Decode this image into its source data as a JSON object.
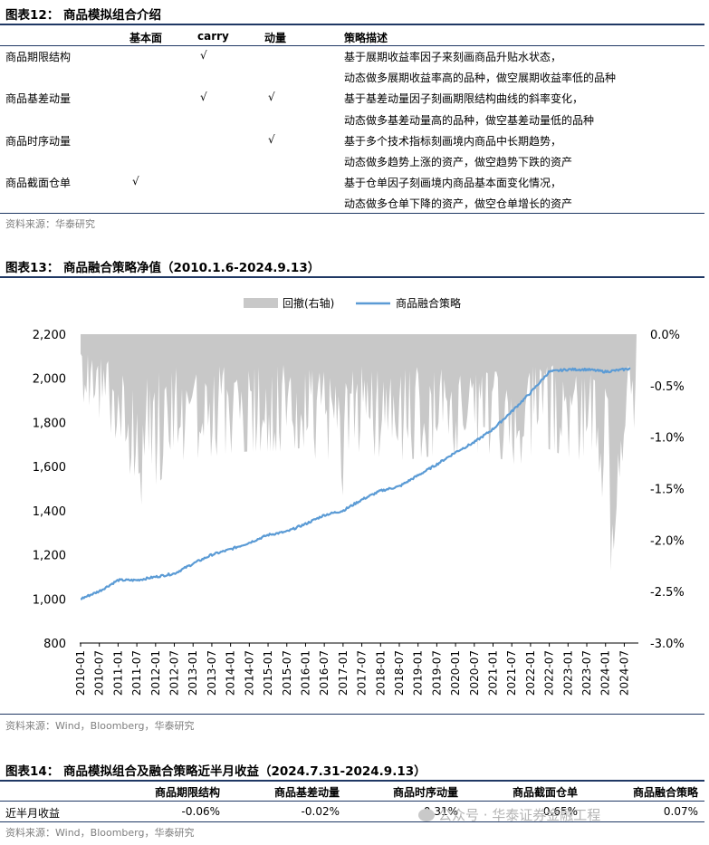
{
  "fig12": {
    "title": "图表12：  商品模拟组合介绍",
    "headers": [
      "基本面",
      "carry",
      "动量",
      "策略描述"
    ],
    "rows": [
      {
        "name": "商品期限结构",
        "fund": "",
        "carry": "√",
        "mom": "",
        "desc": [
          "基于展期收益率因子来刻画商品升贴水状态，",
          "动态做多展期收益率高的品种，做空展期收益率低的品种"
        ]
      },
      {
        "name": "商品基差动量",
        "fund": "",
        "carry": "√",
        "mom": "√",
        "desc": [
          "基于基差动量因子刻画期限结构曲线的斜率变化，",
          "动态做多基差动量高的品种，做空基差动量低的品种"
        ]
      },
      {
        "name": "商品时序动量",
        "fund": "",
        "carry": "",
        "mom": "√",
        "desc": [
          "基于多个技术指标刻画境内商品中长期趋势，",
          "动态做多趋势上涨的资产，做空趋势下跌的资产"
        ]
      },
      {
        "name": "商品截面仓单",
        "fund": "√",
        "carry": "",
        "mom": "",
        "desc": [
          "基于仓单因子刻画境内商品基本面变化情况，",
          "动态做多仓单下降的资产，做空仓单增长的资产"
        ]
      }
    ],
    "source": "资料来源：华泰研究"
  },
  "fig13": {
    "title": "图表13：  商品融合策略净值（2010.1.6-2024.9.13）",
    "source": "资料来源：Wind，Bloomberg，华泰研究"
  },
  "chart_data": {
    "type": "line",
    "legend": [
      "回撤(右轴)",
      "商品融合策略"
    ],
    "legend_position": "top",
    "colors": {
      "line": "#5b9bd5",
      "drawdown": "#c8c8c8"
    },
    "x_tick_labels": [
      "2010-01",
      "2010-07",
      "2011-01",
      "2011-07",
      "2012-01",
      "2012-07",
      "2013-01",
      "2013-07",
      "2014-01",
      "2014-07",
      "2015-01",
      "2015-07",
      "2016-01",
      "2016-07",
      "2017-01",
      "2017-07",
      "2018-01",
      "2018-07",
      "2019-01",
      "2019-07",
      "2020-01",
      "2020-07",
      "2021-01",
      "2021-07",
      "2022-01",
      "2022-07",
      "2023-01",
      "2023-07",
      "2024-01",
      "2024-07"
    ],
    "y_left": {
      "min": 800,
      "max": 2200,
      "ticks": [
        "800",
        "1,000",
        "1,200",
        "1,400",
        "1,600",
        "1,800",
        "2,000",
        "2,200"
      ]
    },
    "y_right": {
      "min": -3.0,
      "max": 0.0,
      "ticks": [
        "0.0%",
        "-0.5%",
        "-1.0%",
        "-1.5%",
        "-2.0%",
        "-2.5%",
        "-3.0%"
      ]
    },
    "series": [
      {
        "name": "商品融合策略",
        "axis": "left",
        "x": [
          "2010-01",
          "2010-07",
          "2011-01",
          "2011-07",
          "2012-01",
          "2012-07",
          "2013-01",
          "2013-07",
          "2014-01",
          "2014-07",
          "2015-01",
          "2015-07",
          "2016-01",
          "2016-07",
          "2017-01",
          "2017-07",
          "2018-01",
          "2018-07",
          "2019-01",
          "2019-07",
          "2020-01",
          "2020-07",
          "2021-01",
          "2021-07",
          "2022-01",
          "2022-07",
          "2023-01",
          "2023-07",
          "2024-01",
          "2024-07",
          "2024-09"
        ],
        "values": [
          1000,
          1035,
          1085,
          1085,
          1100,
          1115,
          1160,
          1200,
          1225,
          1255,
          1290,
          1305,
          1340,
          1380,
          1400,
          1450,
          1490,
          1510,
          1560,
          1610,
          1665,
          1710,
          1770,
          1850,
          1935,
          2030,
          2040,
          2040,
          2030,
          2040,
          2045
        ]
      },
      {
        "name": "回撤(右轴)",
        "axis": "right",
        "x": [
          "2010-03",
          "2011-01",
          "2011-06",
          "2012-01",
          "2012-08",
          "2013-07",
          "2014-06",
          "2015-05",
          "2016-02",
          "2016-12",
          "2017-05",
          "2018-06",
          "2019-05",
          "2019-12",
          "2020-10",
          "2021-09",
          "2022-05",
          "2023-04",
          "2023-10",
          "2024-03",
          "2024-05",
          "2024-07"
        ],
        "values": [
          -0.7,
          -1.1,
          -1.85,
          -1.55,
          -1.3,
          -1.25,
          -1.2,
          -1.2,
          -1.15,
          -1.75,
          -1.2,
          -1.3,
          -1.25,
          -1.25,
          -1.2,
          -1.35,
          -1.15,
          -1.3,
          -1.15,
          -2.5,
          -1.55,
          -1.2
        ]
      }
    ]
  },
  "fig14": {
    "title": "图表14：  商品模拟组合及融合策略近半月收益（2024.7.31-2024.9.13）",
    "headers": [
      "商品期限结构",
      "商品基差动量",
      "商品时序动量",
      "商品截面仓单",
      "商品融合策略"
    ],
    "row_label": "近半月收益",
    "values": [
      "-0.06%",
      "-0.02%",
      "-0.31%",
      "0.65%",
      "0.07%"
    ],
    "source": "资料来源：Wind，Bloomberg，华泰研究"
  },
  "watermark": "公众号 · 华泰证券金融工程"
}
